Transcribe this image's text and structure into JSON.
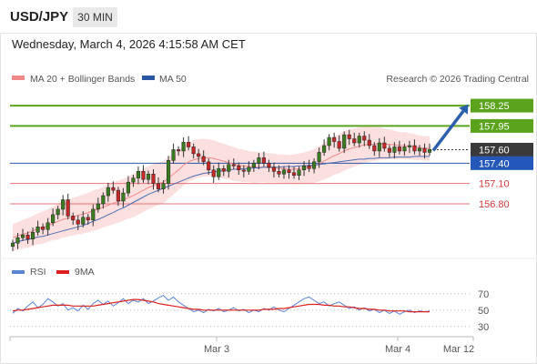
{
  "header": {
    "pair": "USD/JPY",
    "timeframe": "30 MIN"
  },
  "timestamp": "Wednesday, March 4, 2026 4:15:58 AM CET",
  "credit": "Research © 2026 Trading Central",
  "colors": {
    "resistance": "#5ba31d",
    "support": "#e97575",
    "pivot": "#2b56a3",
    "last": "#3a3a3a",
    "bollinger_fill": "#fbd9d9",
    "ma20": "#f08a8a",
    "ma50": "#4b6fb3",
    "up_candle": "#3a7d1e",
    "down_candle": "#c62828",
    "rsi": "#5b83d6",
    "rsi_ma": "#dd2020",
    "arrow": "#2c5fae"
  },
  "chart_data": [
    {
      "type": "line",
      "panel": "price",
      "legend": [
        {
          "name": "MA 20 + Bollinger Bands",
          "color": "#f08a8a"
        },
        {
          "name": "MA 50",
          "color": "#2b56a3"
        }
      ],
      "levels": [
        {
          "value": 158.25,
          "label": "158.25",
          "kind": "resistance"
        },
        {
          "value": 157.95,
          "label": "157.95",
          "kind": "resistance"
        },
        {
          "value": 157.6,
          "label": "157.60",
          "kind": "last"
        },
        {
          "value": 157.4,
          "label": "157.40",
          "kind": "pivot"
        },
        {
          "value": 157.1,
          "label": "157.10",
          "kind": "support"
        },
        {
          "value": 156.8,
          "label": "156.80",
          "kind": "support"
        }
      ],
      "ylim": [
        156.02,
        158.52
      ],
      "x_ticks": [
        "Mar 3",
        "Mar 4",
        "Mar 12"
      ],
      "close": [
        156.22,
        156.3,
        156.34,
        156.28,
        156.38,
        156.46,
        156.42,
        156.52,
        156.64,
        156.72,
        156.86,
        156.62,
        156.56,
        156.5,
        156.6,
        156.56,
        156.72,
        156.8,
        156.92,
        157.04,
        157.0,
        156.84,
        156.96,
        157.12,
        157.18,
        157.28,
        157.16,
        157.24,
        157.1,
        157.02,
        157.1,
        157.44,
        157.6,
        157.58,
        157.71,
        157.64,
        157.54,
        157.5,
        157.42,
        157.3,
        157.2,
        157.32,
        157.28,
        157.38,
        157.36,
        157.3,
        157.28,
        157.34,
        157.4,
        157.48,
        157.4,
        157.34,
        157.28,
        157.24,
        157.3,
        157.26,
        157.22,
        157.3,
        157.36,
        157.32,
        157.42,
        157.56,
        157.66,
        157.78,
        157.72,
        157.62,
        157.82,
        157.76,
        157.7,
        157.8,
        157.74,
        157.66,
        157.58,
        157.7,
        157.62,
        157.56,
        157.64,
        157.58,
        157.64,
        157.66,
        157.58,
        157.62,
        157.56,
        157.6
      ],
      "ma20": [
        156.3,
        156.33,
        156.35,
        156.37,
        156.4,
        156.43,
        156.45,
        156.48,
        156.51,
        156.54,
        156.57,
        156.59,
        156.61,
        156.63,
        156.65,
        156.67,
        156.7,
        156.72,
        156.75,
        156.78,
        156.81,
        156.83,
        156.86,
        156.89,
        156.92,
        156.96,
        157.0,
        157.04,
        157.07,
        157.1,
        157.12,
        157.18,
        157.24,
        157.3,
        157.37,
        157.42,
        157.45,
        157.47,
        157.48,
        157.48,
        157.47,
        157.45,
        157.43,
        157.41,
        157.39,
        157.37,
        157.36,
        157.35,
        157.34,
        157.34,
        157.34,
        157.33,
        157.33,
        157.32,
        157.32,
        157.31,
        157.31,
        157.32,
        157.33,
        157.34,
        157.36,
        157.39,
        157.43,
        157.47,
        157.51,
        157.54,
        157.58,
        157.61,
        157.63,
        157.65,
        157.67,
        157.68,
        157.68,
        157.69,
        157.68,
        157.68,
        157.67,
        157.66,
        157.66,
        157.65,
        157.64,
        157.63,
        157.62,
        157.62
      ],
      "ma50": [
        156.22,
        156.24,
        156.26,
        156.27,
        156.29,
        156.31,
        156.32,
        156.34,
        156.36,
        156.38,
        156.4,
        156.42,
        156.44,
        156.46,
        156.48,
        156.51,
        156.54,
        156.57,
        156.6,
        156.64,
        156.67,
        156.71,
        156.74,
        156.78,
        156.82,
        156.86,
        156.9,
        156.94,
        156.97,
        157.0,
        157.03,
        157.06,
        157.09,
        157.12,
        157.15,
        157.18,
        157.21,
        157.23,
        157.25,
        157.26,
        157.27,
        157.28,
        157.29,
        157.3,
        157.31,
        157.31,
        157.32,
        157.32,
        157.33,
        157.33,
        157.34,
        157.34,
        157.34,
        157.34,
        157.35,
        157.35,
        157.35,
        157.36,
        157.36,
        157.37,
        157.37,
        157.38,
        157.39,
        157.4,
        157.41,
        157.42,
        157.43,
        157.44,
        157.45,
        157.46,
        157.46,
        157.47,
        157.47,
        157.48,
        157.48,
        157.48,
        157.49,
        157.49,
        157.49,
        157.49,
        157.5,
        157.5,
        157.5,
        157.5
      ],
      "bollinger_half_width": [
        0.2,
        0.2,
        0.21,
        0.22,
        0.22,
        0.23,
        0.24,
        0.24,
        0.25,
        0.26,
        0.27,
        0.27,
        0.28,
        0.28,
        0.29,
        0.29,
        0.3,
        0.3,
        0.3,
        0.31,
        0.31,
        0.31,
        0.31,
        0.31,
        0.32,
        0.32,
        0.32,
        0.32,
        0.32,
        0.31,
        0.31,
        0.31,
        0.3,
        0.3,
        0.3,
        0.29,
        0.29,
        0.28,
        0.28,
        0.27,
        0.27,
        0.26,
        0.26,
        0.25,
        0.25,
        0.24,
        0.24,
        0.23,
        0.23,
        0.22,
        0.22,
        0.22,
        0.21,
        0.21,
        0.21,
        0.21,
        0.22,
        0.22,
        0.23,
        0.24,
        0.25,
        0.26,
        0.27,
        0.28,
        0.28,
        0.29,
        0.29,
        0.29,
        0.28,
        0.28,
        0.27,
        0.26,
        0.25,
        0.24,
        0.23,
        0.22,
        0.21,
        0.2,
        0.2,
        0.19,
        0.19,
        0.18,
        0.18,
        0.18
      ],
      "forecast": {
        "from": 157.6,
        "to": 158.25
      }
    },
    {
      "type": "line",
      "panel": "rsi",
      "legend": [
        {
          "name": "RSI",
          "color": "#5b83d6"
        },
        {
          "name": "9MA",
          "color": "#dd2020"
        }
      ],
      "ylim": [
        22,
        82
      ],
      "y_ticks": [
        30,
        50,
        70
      ],
      "rsi": [
        46,
        52,
        49,
        55,
        60,
        53,
        57,
        64,
        60,
        55,
        58,
        50,
        53,
        49,
        56,
        51,
        58,
        62,
        57,
        61,
        55,
        59,
        64,
        58,
        62,
        60,
        64,
        58,
        61,
        65,
        68,
        62,
        66,
        60,
        56,
        52,
        48,
        50,
        47,
        51,
        49,
        52,
        48,
        50,
        53,
        49,
        51,
        47,
        50,
        48,
        52,
        50,
        54,
        50,
        48,
        52,
        56,
        60,
        64,
        66,
        62,
        58,
        60,
        55,
        58,
        60,
        56,
        52,
        54,
        50,
        53,
        49,
        51,
        47,
        50,
        46,
        49,
        45,
        48,
        50,
        47,
        49,
        48,
        49
      ],
      "rsi_ma": [
        49,
        50,
        50,
        51,
        52,
        53,
        54,
        55,
        56,
        56,
        56,
        56,
        55,
        55,
        55,
        55,
        55,
        56,
        57,
        58,
        59,
        60,
        61,
        62,
        63,
        63,
        62,
        61,
        60,
        58,
        57,
        56,
        55,
        54,
        53,
        52,
        51,
        51,
        50,
        50,
        50,
        50,
        50,
        50,
        50,
        50,
        50,
        50,
        50,
        50,
        51,
        51,
        51,
        52,
        52,
        53,
        54,
        55,
        56,
        57,
        57,
        57,
        56,
        56,
        55,
        55,
        54,
        54,
        53,
        52,
        52,
        51,
        51,
        50,
        50,
        49,
        49,
        49,
        49,
        48,
        48,
        48,
        48,
        48
      ]
    }
  ]
}
